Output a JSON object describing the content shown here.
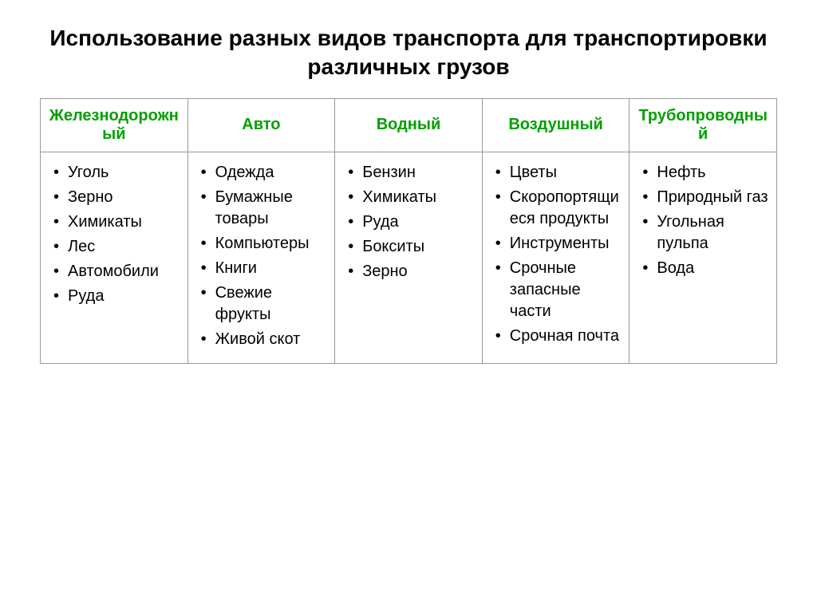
{
  "title": "Использование разных видов транспорта для транспортировки различных грузов",
  "table": {
    "header_color": "#00a000",
    "border_color": "#999999",
    "columns": [
      {
        "label": "Железнодорожный"
      },
      {
        "label": "Авто"
      },
      {
        "label": "Водный"
      },
      {
        "label": "Воздушный"
      },
      {
        "label": "Трубопроводный"
      }
    ],
    "rows": [
      {
        "c0": [
          "Уголь",
          "Зерно",
          "Химикаты",
          "Лес",
          "Автомобили",
          "Руда"
        ],
        "c1": [
          "Одежда",
          "Бумажные товары",
          "Компьютеры",
          "Книги",
          "Свежие фрукты",
          "Живой скот"
        ],
        "c2": [
          "Бензин",
          "Химикаты",
          "Руда",
          "Бокситы",
          "Зерно"
        ],
        "c3": [
          "Цветы",
          "Скоропортящиеся продукты",
          "Инструменты",
          "Срочные запасные части",
          "Срочная почта"
        ],
        "c4": [
          "Нефть",
          "Природный газ",
          "Угольная пульпа",
          "Вода"
        ]
      }
    ]
  }
}
